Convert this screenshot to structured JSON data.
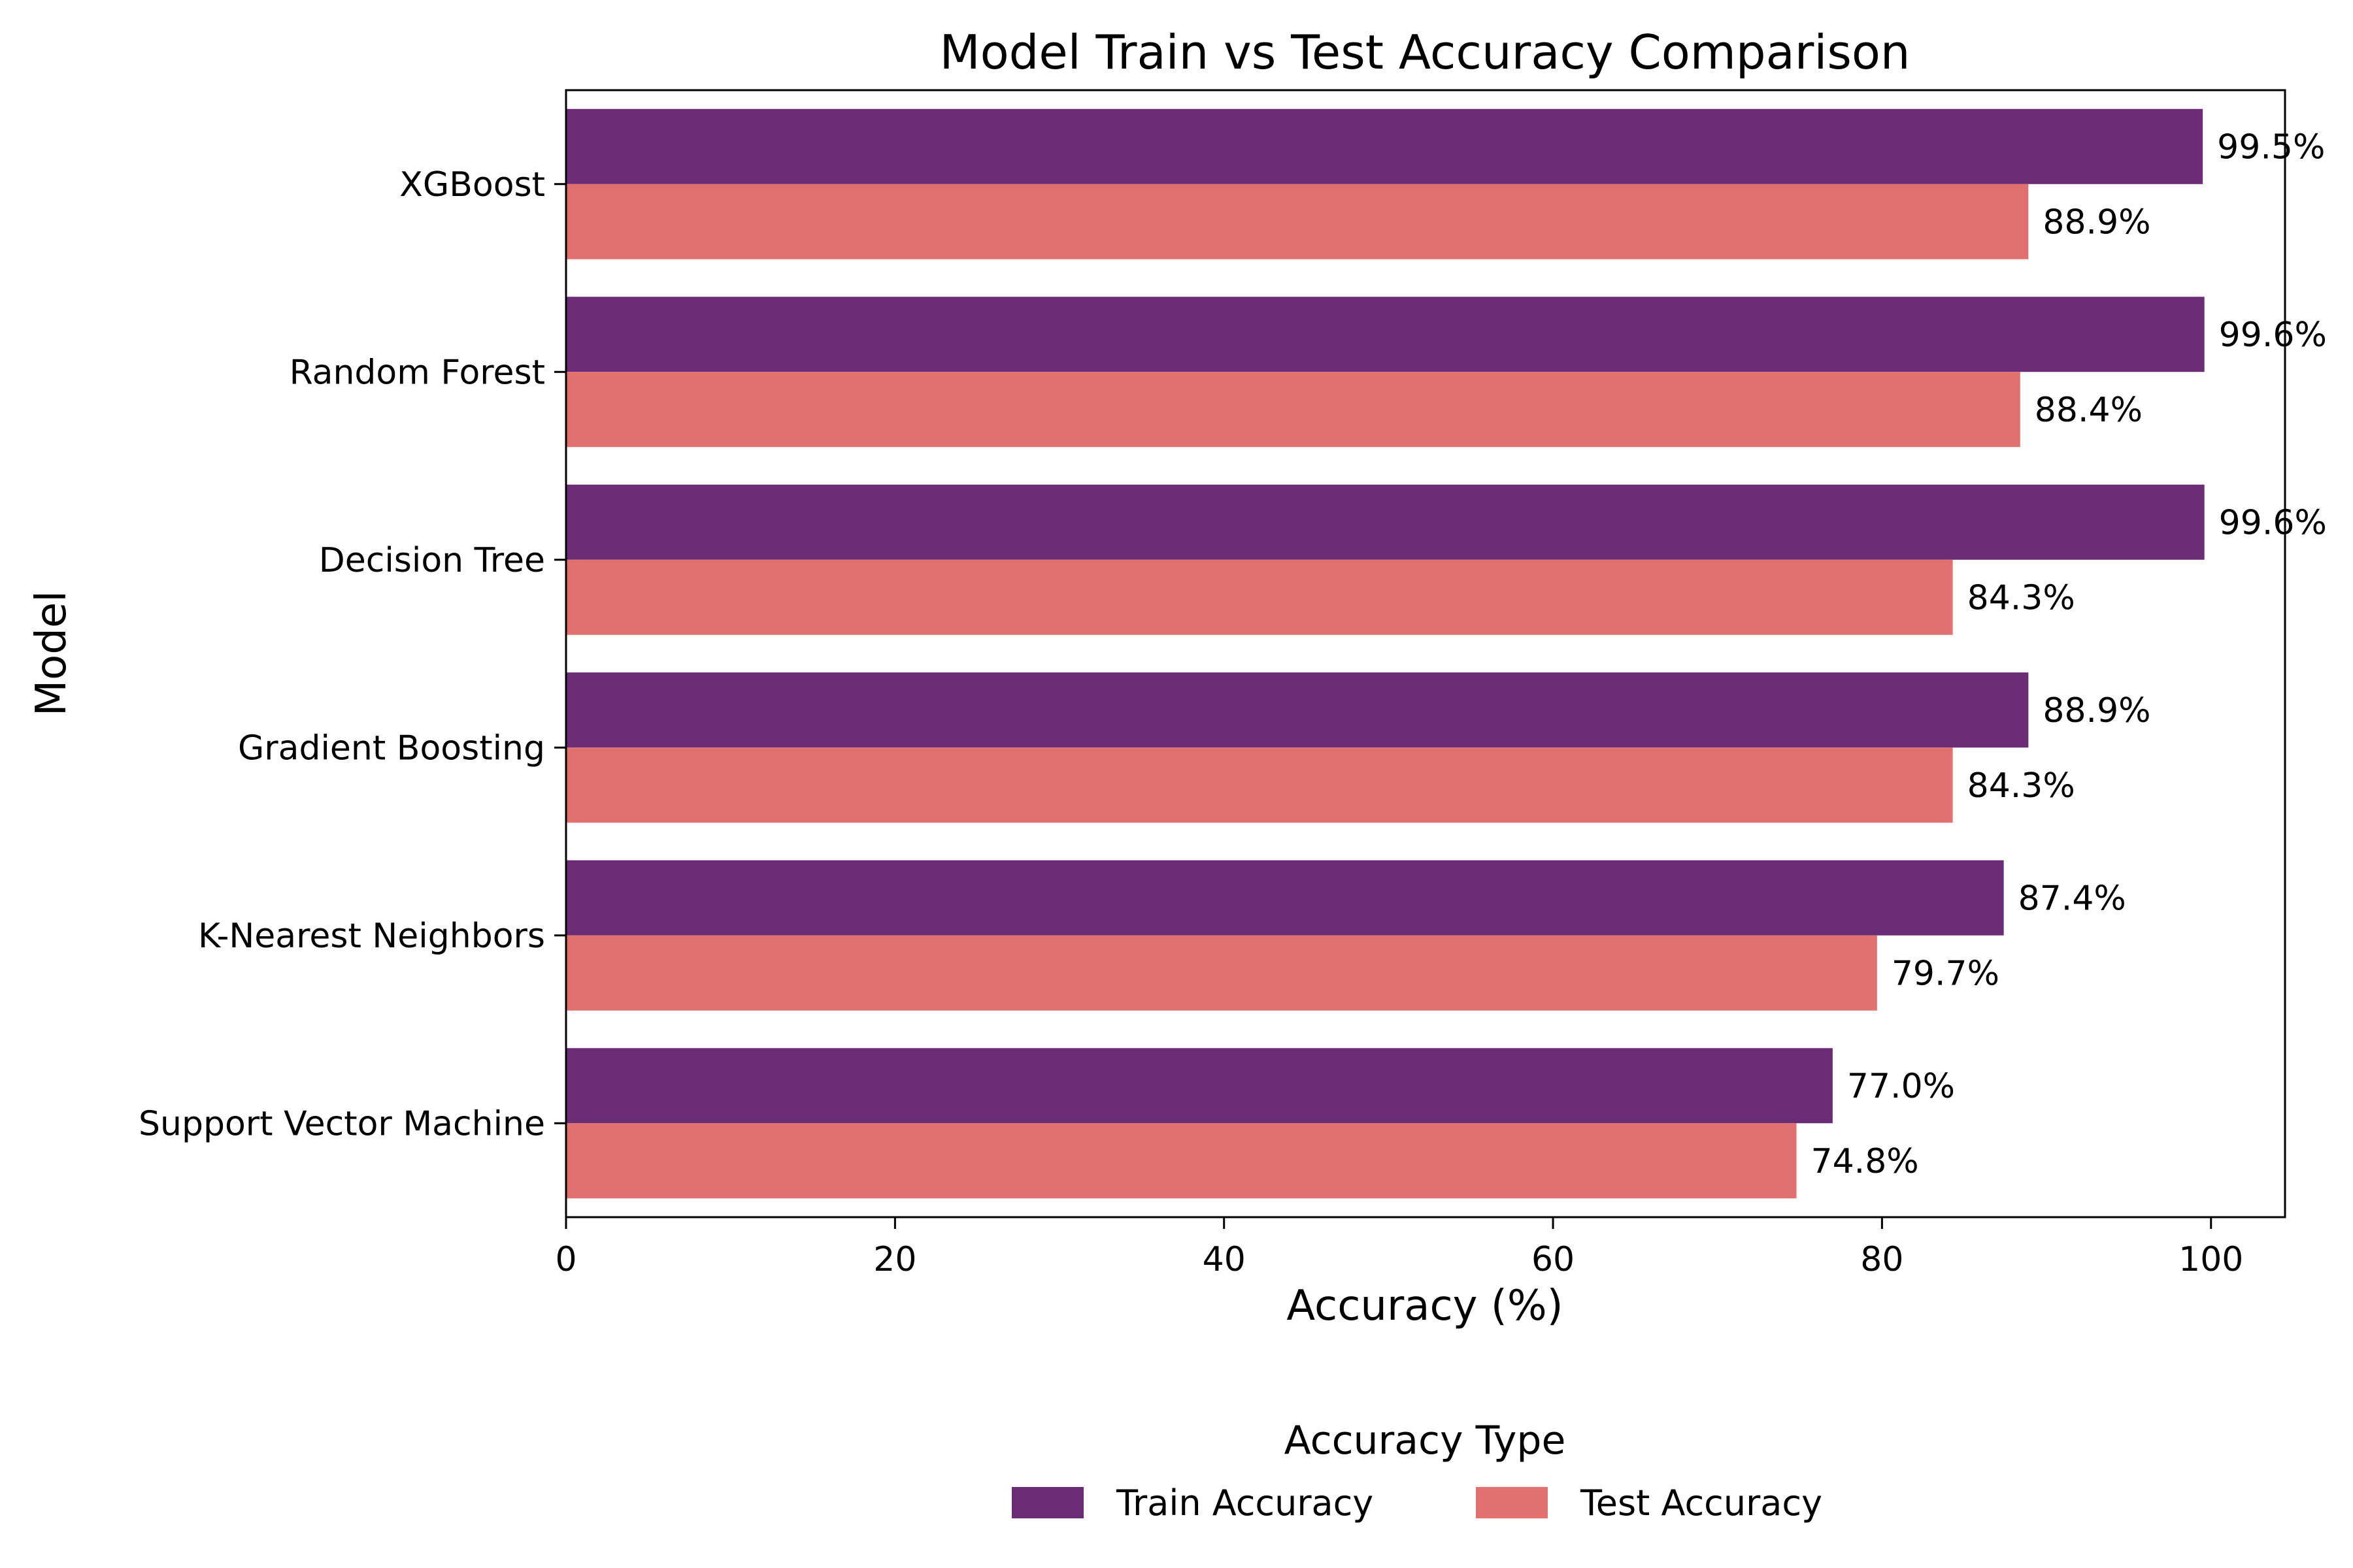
{
  "chart_data": {
    "type": "bar",
    "orientation": "horizontal",
    "title": "Model Train vs Test Accuracy Comparison",
    "xlabel": "Accuracy (%)",
    "ylabel": "Model",
    "xlim": [
      0,
      104.5
    ],
    "xticks": [
      0,
      20,
      40,
      60,
      80,
      100
    ],
    "grid": false,
    "categories": [
      "XGBoost",
      "Random Forest",
      "Decision Tree",
      "Gradient Boosting",
      "K-Nearest Neighbors",
      "Support Vector Machine"
    ],
    "series": [
      {
        "name": "Train Accuracy",
        "color": "#6a2c74",
        "values": [
          99.5,
          99.6,
          99.6,
          88.9,
          87.4,
          77.0
        ],
        "labels": [
          "99.5%",
          "99.6%",
          "99.6%",
          "88.9%",
          "87.4%",
          "77.0%"
        ]
      },
      {
        "name": "Test Accuracy",
        "color": "#e0716e",
        "values": [
          88.9,
          88.4,
          84.3,
          84.3,
          79.7,
          74.8
        ],
        "labels": [
          "88.9%",
          "88.4%",
          "84.3%",
          "84.3%",
          "79.7%",
          "74.8%"
        ]
      }
    ],
    "legend": {
      "title": "Accuracy Type",
      "placement": "bottom-center"
    }
  }
}
